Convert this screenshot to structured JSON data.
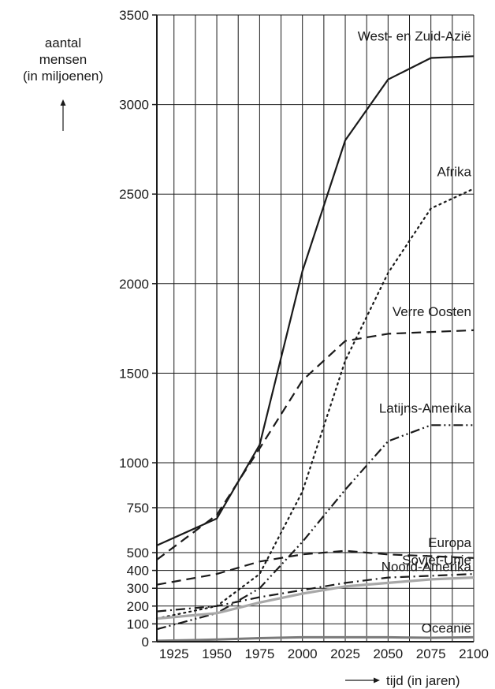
{
  "chart_data": {
    "type": "line",
    "ylabel": [
      "aantal",
      "mensen",
      "(in miljoenen)"
    ],
    "xlabel": "tijd (in jaren)",
    "xlim": [
      1915,
      2100
    ],
    "ylim": [
      0,
      3500
    ],
    "y_axis_scale": "piecewise: 0-500 expanded, 500-1000 and above linear",
    "x_ticks": [
      "1925",
      "1950",
      "1975",
      "2000",
      "2025",
      "2050",
      "2075",
      "2100"
    ],
    "y_ticks": [
      "0",
      "100",
      "200",
      "300",
      "400",
      "500",
      "750",
      "1000",
      "1500",
      "2000",
      "2500",
      "3000",
      "3500"
    ],
    "grid": true,
    "series": [
      {
        "name": "West- en Zuid-Azië",
        "style": "solid",
        "color": "#1a1a1a",
        "x": [
          1915,
          1950,
          1975,
          2000,
          2025,
          2050,
          2075,
          2100
        ],
        "y": [
          540,
          690,
          1100,
          2070,
          2800,
          3140,
          3260,
          3270
        ]
      },
      {
        "name": "Afrika",
        "style": "dotted",
        "color": "#1a1a1a",
        "x": [
          1915,
          1950,
          1975,
          2000,
          2025,
          2050,
          2075,
          2100
        ],
        "y": [
          130,
          200,
          380,
          840,
          1570,
          2060,
          2420,
          2530
        ]
      },
      {
        "name": "Verre Oosten",
        "style": "dashed",
        "color": "#1a1a1a",
        "x": [
          1915,
          1950,
          1975,
          2000,
          2025,
          2050,
          2075,
          2100
        ],
        "y": [
          460,
          710,
          1080,
          1460,
          1680,
          1720,
          1730,
          1740
        ]
      },
      {
        "name": "Latijns-Amerika",
        "style": "dashdotdot",
        "color": "#1a1a1a",
        "x": [
          1915,
          1950,
          1975,
          2000,
          2025,
          2050,
          2075,
          2100
        ],
        "y": [
          70,
          160,
          300,
          560,
          850,
          1120,
          1210,
          1210
        ]
      },
      {
        "name": "Europa",
        "style": "dashed",
        "color": "#1a1a1a",
        "x": [
          1915,
          1950,
          1975,
          2000,
          2025,
          2050,
          2075,
          2100
        ],
        "y": [
          320,
          380,
          450,
          490,
          510,
          490,
          480,
          470
        ]
      },
      {
        "name": "Sovjet-Unie",
        "style": "dashdot",
        "color": "#1a1a1a",
        "x": [
          1915,
          1950,
          1975,
          2000,
          2025,
          2050,
          2075,
          2100
        ],
        "y": [
          170,
          200,
          250,
          290,
          330,
          360,
          370,
          380
        ]
      },
      {
        "name": "Noord-Amerika",
        "style": "solid",
        "color": "#a8a8a8",
        "x": [
          1915,
          1950,
          1975,
          2000,
          2025,
          2050,
          2075,
          2100
        ],
        "y": [
          130,
          160,
          220,
          270,
          310,
          330,
          350,
          360
        ]
      },
      {
        "name": "Oceanië",
        "style": "solid",
        "color": "#7a7a7a",
        "x": [
          1915,
          1950,
          1975,
          2000,
          2025,
          2050,
          2075,
          2100
        ],
        "y": [
          5,
          12,
          20,
          25,
          25,
          25,
          22,
          25
        ]
      }
    ]
  }
}
